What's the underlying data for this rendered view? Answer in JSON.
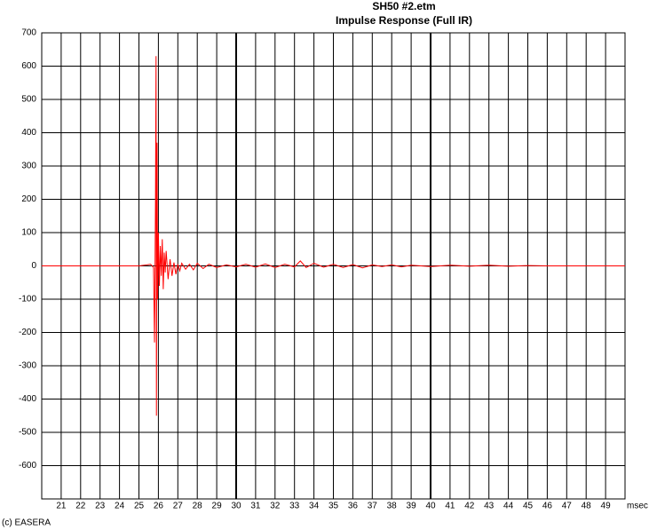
{
  "chart_data": {
    "type": "line",
    "title": "SH50 #2.etm",
    "subtitle": "Impulse Response (Full IR)",
    "x_label": "msec",
    "xlim": [
      20,
      50
    ],
    "ylim": [
      -700,
      700
    ],
    "xticks": [
      21,
      22,
      23,
      24,
      25,
      26,
      27,
      28,
      29,
      30,
      31,
      32,
      33,
      34,
      35,
      36,
      37,
      38,
      39,
      40,
      41,
      42,
      43,
      44,
      45,
      46,
      47,
      48,
      49
    ],
    "yticks": [
      700,
      600,
      500,
      400,
      300,
      200,
      100,
      0,
      -100,
      -200,
      -300,
      -400,
      -500,
      -600
    ],
    "grid": true,
    "color": "#ff0000",
    "x": [
      20,
      25,
      25.4,
      25.6,
      25.75,
      25.8,
      25.85,
      25.88,
      25.9,
      25.93,
      25.96,
      26.0,
      26.05,
      26.1,
      26.15,
      26.2,
      26.25,
      26.3,
      26.35,
      26.4,
      26.5,
      26.6,
      26.7,
      26.8,
      26.9,
      27.0,
      27.1,
      27.2,
      27.4,
      27.6,
      27.8,
      28,
      28.3,
      28.6,
      29,
      29.5,
      30,
      30.5,
      31,
      31.5,
      32,
      32.5,
      33,
      33.3,
      33.6,
      34,
      34.5,
      35,
      35.5,
      36,
      36.5,
      37,
      37.5,
      38,
      38.5,
      39,
      40,
      41,
      42,
      43,
      44,
      45,
      46,
      50
    ],
    "values": [
      0,
      0,
      3,
      5,
      -5,
      -230,
      190,
      630,
      -450,
      370,
      -100,
      100,
      -60,
      60,
      -30,
      80,
      -70,
      40,
      -20,
      45,
      -40,
      20,
      -30,
      10,
      -25,
      5,
      -15,
      8,
      -10,
      5,
      -12,
      8,
      -8,
      5,
      -5,
      3,
      -3,
      5,
      -4,
      6,
      -5,
      5,
      -3,
      15,
      -5,
      8,
      -4,
      5,
      -5,
      4,
      -6,
      3,
      -2,
      3,
      -3,
      2,
      -2,
      2,
      -1,
      2,
      -1,
      1,
      0,
      0
    ]
  },
  "footer": "(c) EASERA"
}
